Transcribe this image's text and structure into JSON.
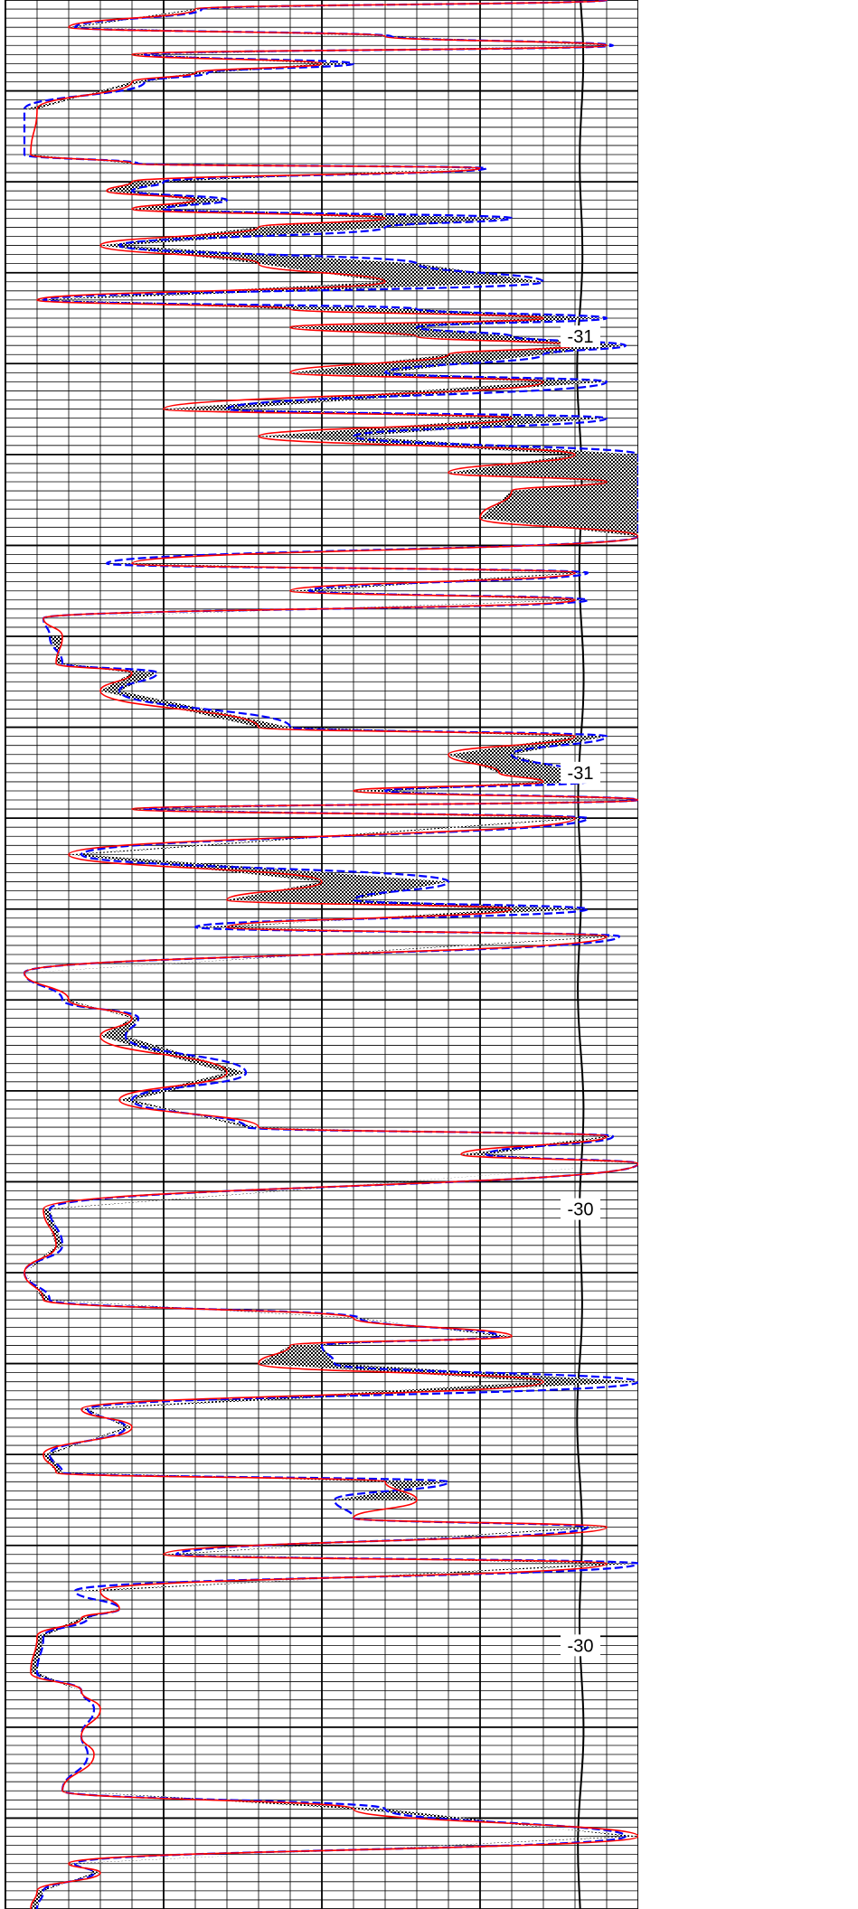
{
  "chart_data": {
    "type": "line",
    "orientation": "vertical-depth-log",
    "depth_labels": [
      {
        "text": "-31",
        "depth": 37
      },
      {
        "text": "-31",
        "depth": 85
      },
      {
        "text": "-30",
        "depth": 133
      },
      {
        "text": "-30",
        "depth": 181
      }
    ],
    "ylim": [
      0,
      210
    ],
    "xlim": [
      0,
      100
    ],
    "major_x_ticks": [
      0,
      25,
      50,
      75,
      100
    ],
    "minor_x_step": 5,
    "grid": true,
    "legend": "none",
    "fill_between_series": true,
    "series": [
      {
        "line_style": "solid",
        "color": "#ff0000",
        "points": [
          [
            95,
            0
          ],
          [
            30,
            1
          ],
          [
            10,
            3
          ],
          [
            60,
            4
          ],
          [
            95,
            5
          ],
          [
            20,
            6
          ],
          [
            50,
            7
          ],
          [
            30,
            8
          ],
          [
            20,
            9
          ],
          [
            5,
            12
          ],
          [
            4,
            17
          ],
          [
            20,
            18
          ],
          [
            75,
            18.5
          ],
          [
            20,
            20
          ],
          [
            16,
            21
          ],
          [
            30,
            22
          ],
          [
            20,
            23
          ],
          [
            60,
            24
          ],
          [
            40,
            25
          ],
          [
            15,
            27
          ],
          [
            40,
            29
          ],
          [
            60,
            31
          ],
          [
            5,
            33
          ],
          [
            45,
            34
          ],
          [
            85,
            35
          ],
          [
            45,
            36
          ],
          [
            65,
            37
          ],
          [
            90,
            38
          ],
          [
            70,
            39
          ],
          [
            45,
            41
          ],
          [
            85,
            42
          ],
          [
            25,
            45
          ],
          [
            80,
            46
          ],
          [
            40,
            48
          ],
          [
            90,
            50
          ],
          [
            70,
            52
          ],
          [
            95,
            53
          ],
          [
            80,
            54
          ],
          [
            75,
            57
          ],
          [
            100,
            59
          ],
          [
            20,
            62
          ],
          [
            90,
            63
          ],
          [
            45,
            65
          ],
          [
            90,
            66
          ],
          [
            6,
            68
          ],
          [
            9,
            70
          ],
          [
            8,
            73
          ],
          [
            20,
            74
          ],
          [
            15,
            76
          ],
          [
            40,
            80
          ],
          [
            90,
            81
          ],
          [
            70,
            83
          ],
          [
            78,
            85
          ],
          [
            85,
            86
          ],
          [
            55,
            87
          ],
          [
            100,
            88
          ],
          [
            20,
            89
          ],
          [
            90,
            90
          ],
          [
            10,
            94
          ],
          [
            50,
            97
          ],
          [
            35,
            99
          ],
          [
            80,
            100
          ],
          [
            35,
            102
          ],
          [
            95,
            103
          ],
          [
            3,
            107
          ],
          [
            10,
            110
          ],
          [
            20,
            112
          ],
          [
            15,
            114
          ],
          [
            35,
            118
          ],
          [
            18,
            121
          ],
          [
            40,
            124
          ],
          [
            95,
            125
          ],
          [
            72,
            127
          ],
          [
            100,
            128
          ],
          [
            6,
            133
          ],
          [
            8,
            137
          ],
          [
            3,
            140
          ],
          [
            6,
            143
          ],
          [
            55,
            145
          ],
          [
            80,
            147
          ],
          [
            45,
            148
          ],
          [
            40,
            150
          ],
          [
            85,
            152
          ],
          [
            12,
            155
          ],
          [
            20,
            157
          ],
          [
            6,
            160
          ],
          [
            8,
            162
          ],
          [
            60,
            163
          ],
          [
            65,
            165
          ],
          [
            55,
            167
          ],
          [
            95,
            168
          ],
          [
            25,
            171
          ],
          [
            95,
            172
          ],
          [
            15,
            175
          ],
          [
            18,
            177
          ],
          [
            12,
            178
          ],
          [
            5,
            180
          ],
          [
            4,
            184
          ],
          [
            12,
            186
          ],
          [
            15,
            188
          ],
          [
            12,
            191
          ],
          [
            14,
            193
          ],
          [
            9,
            197
          ],
          [
            55,
            199
          ],
          [
            100,
            202
          ],
          [
            10,
            205
          ],
          [
            15,
            206
          ],
          [
            5,
            208
          ],
          [
            4,
            210
          ]
        ]
      },
      {
        "line_style": "dashed",
        "color": "#0000ff",
        "points": [
          [
            95,
            0
          ],
          [
            31,
            1
          ],
          [
            11,
            3
          ],
          [
            61,
            4
          ],
          [
            96,
            5
          ],
          [
            22,
            6
          ],
          [
            55,
            7
          ],
          [
            32,
            8
          ],
          [
            22,
            9
          ],
          [
            3,
            12
          ],
          [
            3,
            17
          ],
          [
            21,
            18
          ],
          [
            76,
            18.5
          ],
          [
            25,
            20
          ],
          [
            20,
            21
          ],
          [
            35,
            22
          ],
          [
            25,
            23
          ],
          [
            80,
            24
          ],
          [
            60,
            25
          ],
          [
            18,
            27
          ],
          [
            65,
            29
          ],
          [
            85,
            31
          ],
          [
            6,
            33
          ],
          [
            65,
            34
          ],
          [
            95,
            35
          ],
          [
            65,
            36
          ],
          [
            80,
            37
          ],
          [
            98,
            38
          ],
          [
            85,
            39
          ],
          [
            60,
            41
          ],
          [
            95,
            42
          ],
          [
            35,
            45
          ],
          [
            95,
            46
          ],
          [
            55,
            48
          ],
          [
            100,
            50
          ],
          [
            100,
            52
          ],
          [
            100,
            53
          ],
          [
            100,
            54
          ],
          [
            100,
            57
          ],
          [
            100,
            59
          ],
          [
            16,
            62
          ],
          [
            92,
            63
          ],
          [
            48,
            65
          ],
          [
            92,
            66
          ],
          [
            6,
            68
          ],
          [
            7,
            70
          ],
          [
            9,
            73
          ],
          [
            24,
            74
          ],
          [
            18,
            76
          ],
          [
            45,
            80
          ],
          [
            95,
            81
          ],
          [
            80,
            83
          ],
          [
            90,
            85
          ],
          [
            92,
            86
          ],
          [
            60,
            87
          ],
          [
            100,
            88
          ],
          [
            22,
            89
          ],
          [
            92,
            90
          ],
          [
            12,
            94
          ],
          [
            70,
            97
          ],
          [
            55,
            99
          ],
          [
            92,
            100
          ],
          [
            30,
            102
          ],
          [
            97,
            103
          ],
          [
            3,
            107
          ],
          [
            9,
            110
          ],
          [
            21,
            112
          ],
          [
            19,
            114
          ],
          [
            38,
            118
          ],
          [
            20,
            121
          ],
          [
            38,
            124
          ],
          [
            96,
            125
          ],
          [
            76,
            127
          ],
          [
            100,
            128
          ],
          [
            7,
            133
          ],
          [
            9,
            137
          ],
          [
            3,
            140
          ],
          [
            7,
            143
          ],
          [
            56,
            145
          ],
          [
            78,
            147
          ],
          [
            50,
            148
          ],
          [
            52,
            150
          ],
          [
            100,
            152
          ],
          [
            13,
            155
          ],
          [
            19,
            157
          ],
          [
            7,
            160
          ],
          [
            9,
            162
          ],
          [
            70,
            163
          ],
          [
            52,
            165
          ],
          [
            55,
            167
          ],
          [
            92,
            168
          ],
          [
            27,
            171
          ],
          [
            100,
            172
          ],
          [
            11,
            175
          ],
          [
            18,
            177
          ],
          [
            13,
            178
          ],
          [
            6,
            180
          ],
          [
            5,
            184
          ],
          [
            12,
            186
          ],
          [
            14,
            188
          ],
          [
            12,
            191
          ],
          [
            13,
            193
          ],
          [
            9,
            197
          ],
          [
            60,
            199
          ],
          [
            98,
            202
          ],
          [
            11,
            205
          ],
          [
            14,
            206
          ],
          [
            6,
            208
          ],
          [
            5,
            210
          ]
        ]
      }
    ]
  }
}
